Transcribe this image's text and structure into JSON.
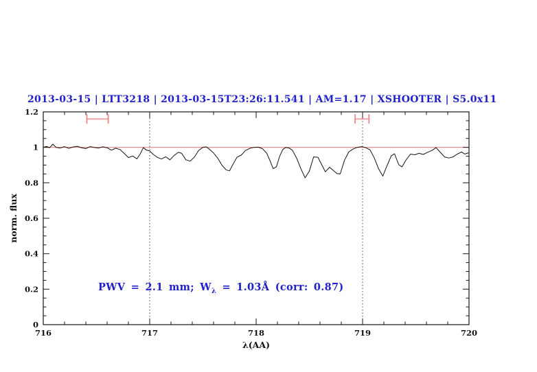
{
  "colors": {
    "accent_blue": "#2121cc",
    "continuum_red": "#ee8282",
    "marker_pink": "#ec8888",
    "spectrum_black": "#111111"
  },
  "chart_data": {
    "type": "line",
    "title": "2013-03-15 | LTT3218 | 2013-03-15T23:26:11.541 | AM=1.17 | XSHOOTER | S5.0x11",
    "xlabel": "λ(AA)",
    "ylabel": "norm. flux",
    "xlim": [
      716,
      720
    ],
    "ylim": [
      0,
      1.2
    ],
    "x_major_ticks": [
      716,
      717,
      718,
      719,
      720
    ],
    "x_tick_labels": [
      "716",
      "717",
      "718",
      "719",
      "720"
    ],
    "x_minor_step": 0.2,
    "y_major_ticks": [
      0,
      0.2,
      0.4,
      0.6,
      0.8,
      1.0,
      1.2
    ],
    "y_tick_labels": [
      "0",
      "0.2",
      "0.4",
      "0.6",
      "0.8",
      "1",
      "1.2"
    ],
    "y_minor_step": 0.05,
    "grid": false,
    "legend": "none",
    "annotation": {
      "prefix": "PWV = 2.1 mm; W",
      "sub": "λ",
      "suffix": " = 1.03Å (corr: 0.87)"
    },
    "continuum": {
      "y": 1.0
    },
    "vlines": [
      {
        "x": 717,
        "style": "dotted"
      },
      {
        "x": 719,
        "style": "dotted"
      }
    ],
    "band_markers": [
      {
        "x_min": 716.41,
        "x_max": 716.61,
        "y": 1.16
      },
      {
        "x_min": 718.93,
        "x_max": 719.06,
        "y": 1.16
      }
    ],
    "series": [
      {
        "name": "normalized spectrum",
        "x": [
          716.0,
          716.03,
          716.06,
          716.09,
          716.12,
          716.16,
          716.2,
          716.24,
          716.28,
          716.32,
          716.36,
          716.4,
          716.44,
          716.48,
          716.52,
          716.56,
          716.6,
          716.64,
          716.68,
          716.72,
          716.76,
          716.8,
          716.84,
          716.88,
          716.91,
          716.94,
          716.97,
          717.0,
          717.03,
          717.07,
          717.11,
          717.15,
          717.19,
          717.23,
          717.27,
          717.3,
          717.34,
          717.38,
          717.42,
          717.46,
          717.5,
          717.53,
          717.56,
          717.6,
          717.64,
          717.68,
          717.72,
          717.75,
          717.78,
          717.82,
          717.86,
          717.9,
          717.94,
          717.98,
          718.02,
          718.06,
          718.1,
          718.13,
          718.16,
          718.19,
          718.22,
          718.25,
          718.28,
          718.31,
          718.34,
          718.38,
          718.42,
          718.46,
          718.5,
          718.54,
          718.58,
          718.62,
          718.65,
          718.69,
          718.72,
          718.76,
          718.79,
          718.83,
          718.87,
          718.91,
          718.95,
          718.99,
          719.03,
          719.07,
          719.11,
          719.15,
          719.19,
          719.23,
          719.27,
          719.3,
          719.34,
          719.37,
          719.41,
          719.45,
          719.49,
          719.53,
          719.57,
          719.61,
          719.65,
          719.69,
          719.73,
          719.77,
          719.81,
          719.85,
          719.89,
          719.93,
          719.96,
          720.0
        ],
        "y": [
          1.0,
          1.005,
          0.998,
          1.018,
          1.0,
          0.996,
          1.004,
          0.994,
          1.002,
          1.006,
          0.997,
          0.993,
          1.004,
          0.999,
          0.996,
          1.003,
          0.998,
          0.984,
          0.995,
          0.988,
          0.966,
          0.942,
          0.951,
          0.935,
          0.962,
          0.998,
          0.984,
          0.98,
          0.962,
          0.944,
          0.934,
          0.947,
          0.93,
          0.955,
          0.972,
          0.966,
          0.93,
          0.922,
          0.945,
          0.983,
          1.0,
          1.003,
          0.99,
          0.968,
          0.938,
          0.898,
          0.872,
          0.868,
          0.902,
          0.944,
          0.956,
          0.982,
          0.994,
          1.0,
          1.001,
          0.992,
          0.966,
          0.925,
          0.88,
          0.89,
          0.948,
          0.988,
          1.0,
          0.996,
          0.984,
          0.94,
          0.88,
          0.828,
          0.866,
          0.946,
          0.944,
          0.898,
          0.862,
          0.888,
          0.872,
          0.852,
          0.85,
          0.928,
          0.974,
          0.99,
          1.0,
          1.004,
          0.998,
          0.986,
          0.94,
          0.88,
          0.838,
          0.898,
          0.952,
          0.964,
          0.902,
          0.89,
          0.93,
          0.962,
          0.958,
          0.966,
          0.96,
          0.972,
          0.982,
          0.998,
          0.972,
          0.946,
          0.94,
          0.946,
          0.962,
          0.974,
          0.962,
          0.97
        ]
      }
    ]
  }
}
